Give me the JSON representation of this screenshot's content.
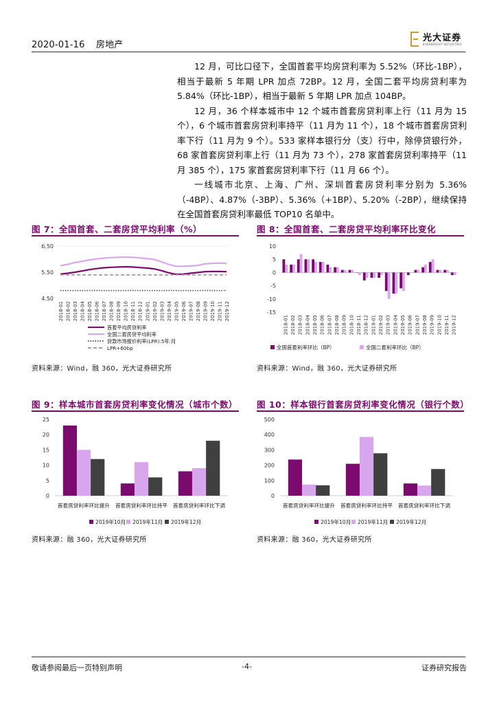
{
  "header": {
    "date": "2020-01-16",
    "sector": "房地产",
    "logo_cn": "光大证券",
    "logo_en": "EVERBRIGHT SECURITIES"
  },
  "paragraphs": [
    "12 月，可比口径下，全国首套平均房贷利率为 5.52%（环比-1BP），相当于最新 5 年期 LPR 加点 72BP。12 月，全国二套平均房贷利率为 5.84%（环比-1BP），相当于最新 5 年期 LPR 加点 104BP。",
    "12 月，36 个样本城市中 12 个城市首套房贷利率上行（11 月为 15 个），6 个城市首套房贷利率持平（11 月为 11 个），18 个城市首套房贷利率下行（11 月为 9 个）。533 家样本银行分（支）行中，除停贷银行外，68 家首套房贷利率上行（11 月为 73 个），278 家首套房贷利率持平（11 月 385 个），175 家首套房贷利率下行（11 月 66 个）。",
    "一线城市北京、上海、广州、深圳首套房贷利率分别为 5.36%（-4BP）、4.87%（-3BP）、5.36%（+1BP）、5.20%（-2BP），继续保持在全国首套房贷利率最低 TOP10 名单中。"
  ],
  "figures": [
    {
      "title": "图 7：全国首套、二套房贷平均利率（%）",
      "source": "资料来源：Wind，融 360，光大证券研究所",
      "chart_data": {
        "type": "line",
        "x": [
          "2018-01",
          "2018-02",
          "2018-03",
          "2018-04",
          "2018-05",
          "2018-06",
          "2018-07",
          "2018-08",
          "2018-09",
          "2018-10",
          "2018-11",
          "2018-12",
          "2019-01",
          "2019-02",
          "2019-03",
          "2019-04",
          "2019-05",
          "2019-06",
          "2019-07",
          "2019-08",
          "2019-09",
          "2019-10",
          "2019-11",
          "2019-12"
        ],
        "yticks": [
          "6.50",
          "5.50",
          "4.50"
        ],
        "ylim": [
          4.5,
          6.5
        ],
        "series": [
          {
            "name": "首套平均房贷利率",
            "color": "#7b0a6e",
            "style": "solid",
            "values": [
              5.43,
              5.46,
              5.5,
              5.55,
              5.6,
              5.64,
              5.67,
              5.69,
              5.7,
              5.71,
              5.7,
              5.68,
              5.66,
              5.63,
              5.56,
              5.48,
              5.42,
              5.43,
              5.46,
              5.49,
              5.52,
              5.53,
              5.53,
              5.52
            ]
          },
          {
            "name": "全国二套房贷平均利率",
            "color": "#d8a6ec",
            "style": "solid",
            "values": [
              5.75,
              5.8,
              5.87,
              5.92,
              5.97,
              6.01,
              6.04,
              6.06,
              6.07,
              6.08,
              6.07,
              6.05,
              6.02,
              5.99,
              5.9,
              5.8,
              5.73,
              5.73,
              5.74,
              5.76,
              5.82,
              5.84,
              5.85,
              5.84
            ]
          },
          {
            "name": "贷款市场报价利率(LPR):5年:月",
            "color": "#555555",
            "style": "dotted",
            "values": [
              4.8,
              4.8,
              4.8,
              4.8,
              4.8,
              4.8,
              4.8,
              4.8,
              4.8,
              4.8,
              4.8,
              4.8,
              4.8,
              4.8,
              4.8,
              4.8,
              4.8,
              4.8,
              4.8,
              4.8,
              4.8,
              4.8,
              4.8,
              4.8
            ]
          },
          {
            "name": "LPR+60bp",
            "color": "#a0a0a0",
            "style": "dashed",
            "values": [
              5.4,
              5.4,
              5.4,
              5.4,
              5.4,
              5.4,
              5.4,
              5.4,
              5.4,
              5.4,
              5.4,
              5.4,
              5.4,
              5.4,
              5.4,
              5.4,
              5.4,
              5.4,
              5.4,
              5.4,
              5.4,
              5.4,
              5.4,
              5.4
            ]
          }
        ],
        "legend": "bottom-left"
      }
    },
    {
      "title": "图 8：全国首套、二套房贷平均利率环比变化",
      "source": "资料来源：Wind，融 360，光大证券研究所",
      "chart_data": {
        "type": "bar",
        "categories": [
          "2018-01",
          "2018-02",
          "2018-03",
          "2018-04",
          "2018-05",
          "2018-06",
          "2018-07",
          "2018-08",
          "2018-09",
          "2018-10",
          "2018-11",
          "2018-12",
          "2019-01",
          "2019-02",
          "2019-03",
          "2019-04",
          "2019-05",
          "2019-06",
          "2019-07",
          "2019-08",
          "2019-09",
          "2019-10",
          "2019-11",
          "2019-12"
        ],
        "yticks": [
          "10",
          "5",
          "0",
          "-5",
          "-10",
          "-15"
        ],
        "ylim": [
          -15,
          10
        ],
        "series": [
          {
            "name": "全国首套利率环比（BP）",
            "color": "#7b0a6e",
            "values": [
              5,
              3,
              5,
              5,
              5,
              4,
              3,
              2,
              1,
              1,
              0,
              -3,
              -2,
              -2,
              -7,
              -8,
              -6,
              -1,
              1,
              2,
              4,
              1,
              1,
              -1
            ]
          },
          {
            "name": "全国二套利率环比（BP）",
            "color": "#d8a6ec",
            "values": [
              3,
              3,
              7,
              5,
              4,
              4,
              2,
              2,
              1,
              1,
              -1,
              -2,
              -2,
              -1,
              -10,
              -8,
              -7,
              0,
              1,
              3,
              5,
              1,
              1,
              -1
            ]
          }
        ],
        "legend": "bottom"
      }
    },
    {
      "title": "图 9：样本城市首套房贷利率变化情况（城市个数）",
      "source": "资料来源：融 360，光大证券研究所",
      "chart_data": {
        "type": "bar",
        "categories": [
          "首套房贷利率环比提升",
          "首套房贷利率环比持平",
          "首套房贷利率环比下调"
        ],
        "yticks": [
          "25",
          "20",
          "15",
          "10",
          "5",
          "0"
        ],
        "ylim": [
          0,
          25
        ],
        "series": [
          {
            "name": "2019年10月",
            "color": "#7b0a6e",
            "values": [
              23,
              4,
              8
            ]
          },
          {
            "name": "2019年11月",
            "color": "#d8a6ec",
            "values": [
              15,
              11,
              9
            ]
          },
          {
            "name": "2019年12月",
            "color": "#404040",
            "values": [
              12,
              6,
              18
            ]
          }
        ],
        "legend": "bottom"
      }
    },
    {
      "title": "图 10：样本银行首套房贷利率变化情况（银行个数）",
      "source": "资料来源：融 360，光大证券研究所",
      "chart_data": {
        "type": "bar",
        "categories": [
          "首套房贷利率环比提升",
          "首套房贷利率环比持平",
          "首套房贷利率环比下调"
        ],
        "yticks": [
          "500",
          "400",
          "300",
          "200",
          "100",
          "0"
        ],
        "ylim": [
          0,
          500
        ],
        "series": [
          {
            "name": "2019年10月",
            "color": "#7b0a6e",
            "values": [
              237,
              209,
              80
            ]
          },
          {
            "name": "2019年11月",
            "color": "#d8a6ec",
            "values": [
              73,
              385,
              66
            ]
          },
          {
            "name": "2019年12月",
            "color": "#404040",
            "values": [
              68,
              278,
              175
            ]
          }
        ],
        "legend": "bottom"
      }
    }
  ],
  "footer": {
    "left": "敬请参阅最后一页特别声明",
    "center": "-4-",
    "right": "证券研究报告"
  }
}
